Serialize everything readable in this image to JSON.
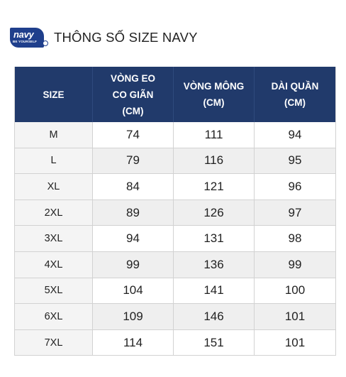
{
  "logo": {
    "word": "navy",
    "tagline": "BE YOURSELF"
  },
  "title": "THÔNG SỐ SIZE NAVY",
  "table": {
    "headers": [
      [
        "SIZE"
      ],
      [
        "VÒNG EO",
        "CO GIÃN",
        "(CM)"
      ],
      [
        "VÒNG MÔNG",
        "(CM)"
      ],
      [
        "DÀI QUẦN",
        "(CM)"
      ]
    ],
    "rows": [
      [
        "M",
        "74",
        "111",
        "94"
      ],
      [
        "L",
        "79",
        "116",
        "95"
      ],
      [
        "XL",
        "84",
        "121",
        "96"
      ],
      [
        "2XL",
        "89",
        "126",
        "97"
      ],
      [
        "3XL",
        "94",
        "131",
        "98"
      ],
      [
        "4XL",
        "99",
        "136",
        "99"
      ],
      [
        "5XL",
        "104",
        "141",
        "100"
      ],
      [
        "6XL",
        "109",
        "146",
        "101"
      ],
      [
        "7XL",
        "114",
        "151",
        "101"
      ]
    ]
  },
  "colors": {
    "header_bg": "#213a6b",
    "logo_bg": "#1f3f8c",
    "stripe": "#efefef"
  }
}
